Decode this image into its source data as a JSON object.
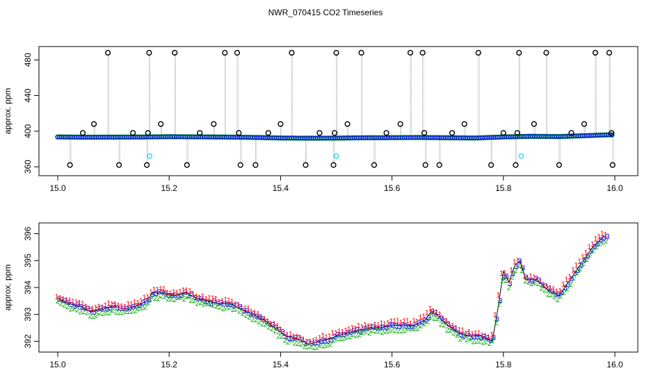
{
  "title": "NWR_070415  CO2 Timeseries",
  "chart_data": [
    {
      "type": "scatter",
      "panel": "top",
      "ylabel": "approx. ppm",
      "xlabel": "",
      "xlim": [
        15.0,
        16.0
      ],
      "ylim": [
        350,
        495
      ],
      "xticks": [
        15.0,
        15.2,
        15.4,
        15.6,
        15.8,
        16.0
      ],
      "xtick_labels": [
        "15.0",
        "15.2",
        "15.4",
        "15.6",
        "15.8",
        "16.0"
      ],
      "yticks": [
        360,
        400,
        440,
        480
      ],
      "ytick_labels": [
        "360",
        "400",
        "440",
        "480"
      ],
      "colors": {
        "baseline": "#0000ff",
        "baseline_edge": "#00aa00",
        "outlier": "#000000",
        "cyan": "#00dddd",
        "trace": "#888888"
      },
      "baseline": {
        "x": [
          15.0,
          15.05,
          15.1,
          15.15,
          15.2,
          15.25,
          15.3,
          15.35,
          15.4,
          15.45,
          15.5,
          15.55,
          15.6,
          15.65,
          15.7,
          15.75,
          15.8,
          15.85,
          15.9,
          15.95,
          15.99
        ],
        "y": [
          393.5,
          393.2,
          393.3,
          393.4,
          393.8,
          393.6,
          393.4,
          393.0,
          392.3,
          392.1,
          392.2,
          392.6,
          392.7,
          392.9,
          392.6,
          392.3,
          393.5,
          394.2,
          393.9,
          395.0,
          395.9
        ]
      },
      "outliers": {
        "x": [
          15.022,
          15.045,
          15.065,
          15.09,
          15.11,
          15.135,
          15.16,
          15.162,
          15.164,
          15.185,
          15.21,
          15.232,
          15.255,
          15.28,
          15.3,
          15.322,
          15.325,
          15.328,
          15.355,
          15.378,
          15.4,
          15.42,
          15.445,
          15.47,
          15.495,
          15.497,
          15.5,
          15.52,
          15.545,
          15.568,
          15.59,
          15.615,
          15.633,
          15.655,
          15.658,
          15.66,
          15.685,
          15.708,
          15.73,
          15.755,
          15.778,
          15.8,
          15.822,
          15.825,
          15.828,
          15.855,
          15.877,
          15.9,
          15.922,
          15.945,
          15.965,
          15.99,
          15.994,
          15.996
        ],
        "y": [
          362,
          398,
          408,
          488,
          362,
          398,
          362,
          398,
          488,
          408,
          488,
          362,
          398,
          408,
          488,
          488,
          398,
          362,
          362,
          398,
          408,
          488,
          362,
          398,
          362,
          398,
          488,
          408,
          488,
          362,
          398,
          408,
          488,
          488,
          398,
          362,
          362,
          398,
          408,
          488,
          362,
          398,
          362,
          398,
          488,
          408,
          488,
          362,
          398,
          408,
          488,
          488,
          398,
          362
        ]
      },
      "cyan_points": {
        "x": [
          15.165,
          15.5,
          15.832
        ],
        "y": [
          372,
          372,
          372
        ]
      }
    },
    {
      "type": "scatter",
      "panel": "bottom",
      "ylabel": "approx. ppm",
      "xlabel": "",
      "xlim": [
        15.0,
        16.0
      ],
      "ylim": [
        391.6,
        396.4
      ],
      "xticks": [
        15.0,
        15.2,
        15.4,
        15.6,
        15.8,
        16.0
      ],
      "xtick_labels": [
        "15.0",
        "15.2",
        "15.4",
        "15.6",
        "15.8",
        "16.0"
      ],
      "yticks": [
        392,
        393,
        394,
        395,
        396
      ],
      "ytick_labels": [
        "392",
        "393",
        "394",
        "395",
        "396"
      ],
      "marker_symbols": [
        "1",
        "2",
        "3"
      ],
      "colors": {
        "s1": "#ff0000",
        "s2": "#00aa00",
        "s3": "#0000ff",
        "line": "#000000"
      },
      "trend": {
        "x": [
          15.0,
          15.02,
          15.04,
          15.06,
          15.08,
          15.1,
          15.12,
          15.14,
          15.16,
          15.17,
          15.19,
          15.21,
          15.23,
          15.25,
          15.27,
          15.29,
          15.31,
          15.33,
          15.35,
          15.37,
          15.39,
          15.41,
          15.43,
          15.45,
          15.47,
          15.49,
          15.5,
          15.52,
          15.54,
          15.56,
          15.58,
          15.6,
          15.62,
          15.64,
          15.66,
          15.67,
          15.68,
          15.7,
          15.72,
          15.74,
          15.76,
          15.78,
          15.79,
          15.8,
          15.81,
          15.82,
          15.83,
          15.84,
          15.86,
          15.88,
          15.9,
          15.92,
          15.94,
          15.96,
          15.98
        ],
        "y": [
          393.6,
          393.4,
          393.3,
          393.1,
          393.2,
          393.3,
          393.2,
          393.3,
          393.5,
          393.8,
          393.8,
          393.7,
          393.8,
          393.6,
          393.5,
          393.4,
          393.4,
          393.2,
          393.0,
          392.8,
          392.5,
          392.2,
          392.1,
          391.9,
          392.0,
          392.1,
          392.2,
          392.3,
          392.4,
          392.5,
          392.5,
          392.6,
          392.6,
          392.6,
          392.8,
          393.1,
          393.0,
          392.6,
          392.3,
          392.2,
          392.2,
          392.0,
          393.2,
          394.6,
          394.2,
          394.8,
          395.0,
          394.3,
          394.3,
          393.9,
          393.7,
          394.3,
          394.9,
          395.5,
          395.9
        ]
      }
    }
  ]
}
